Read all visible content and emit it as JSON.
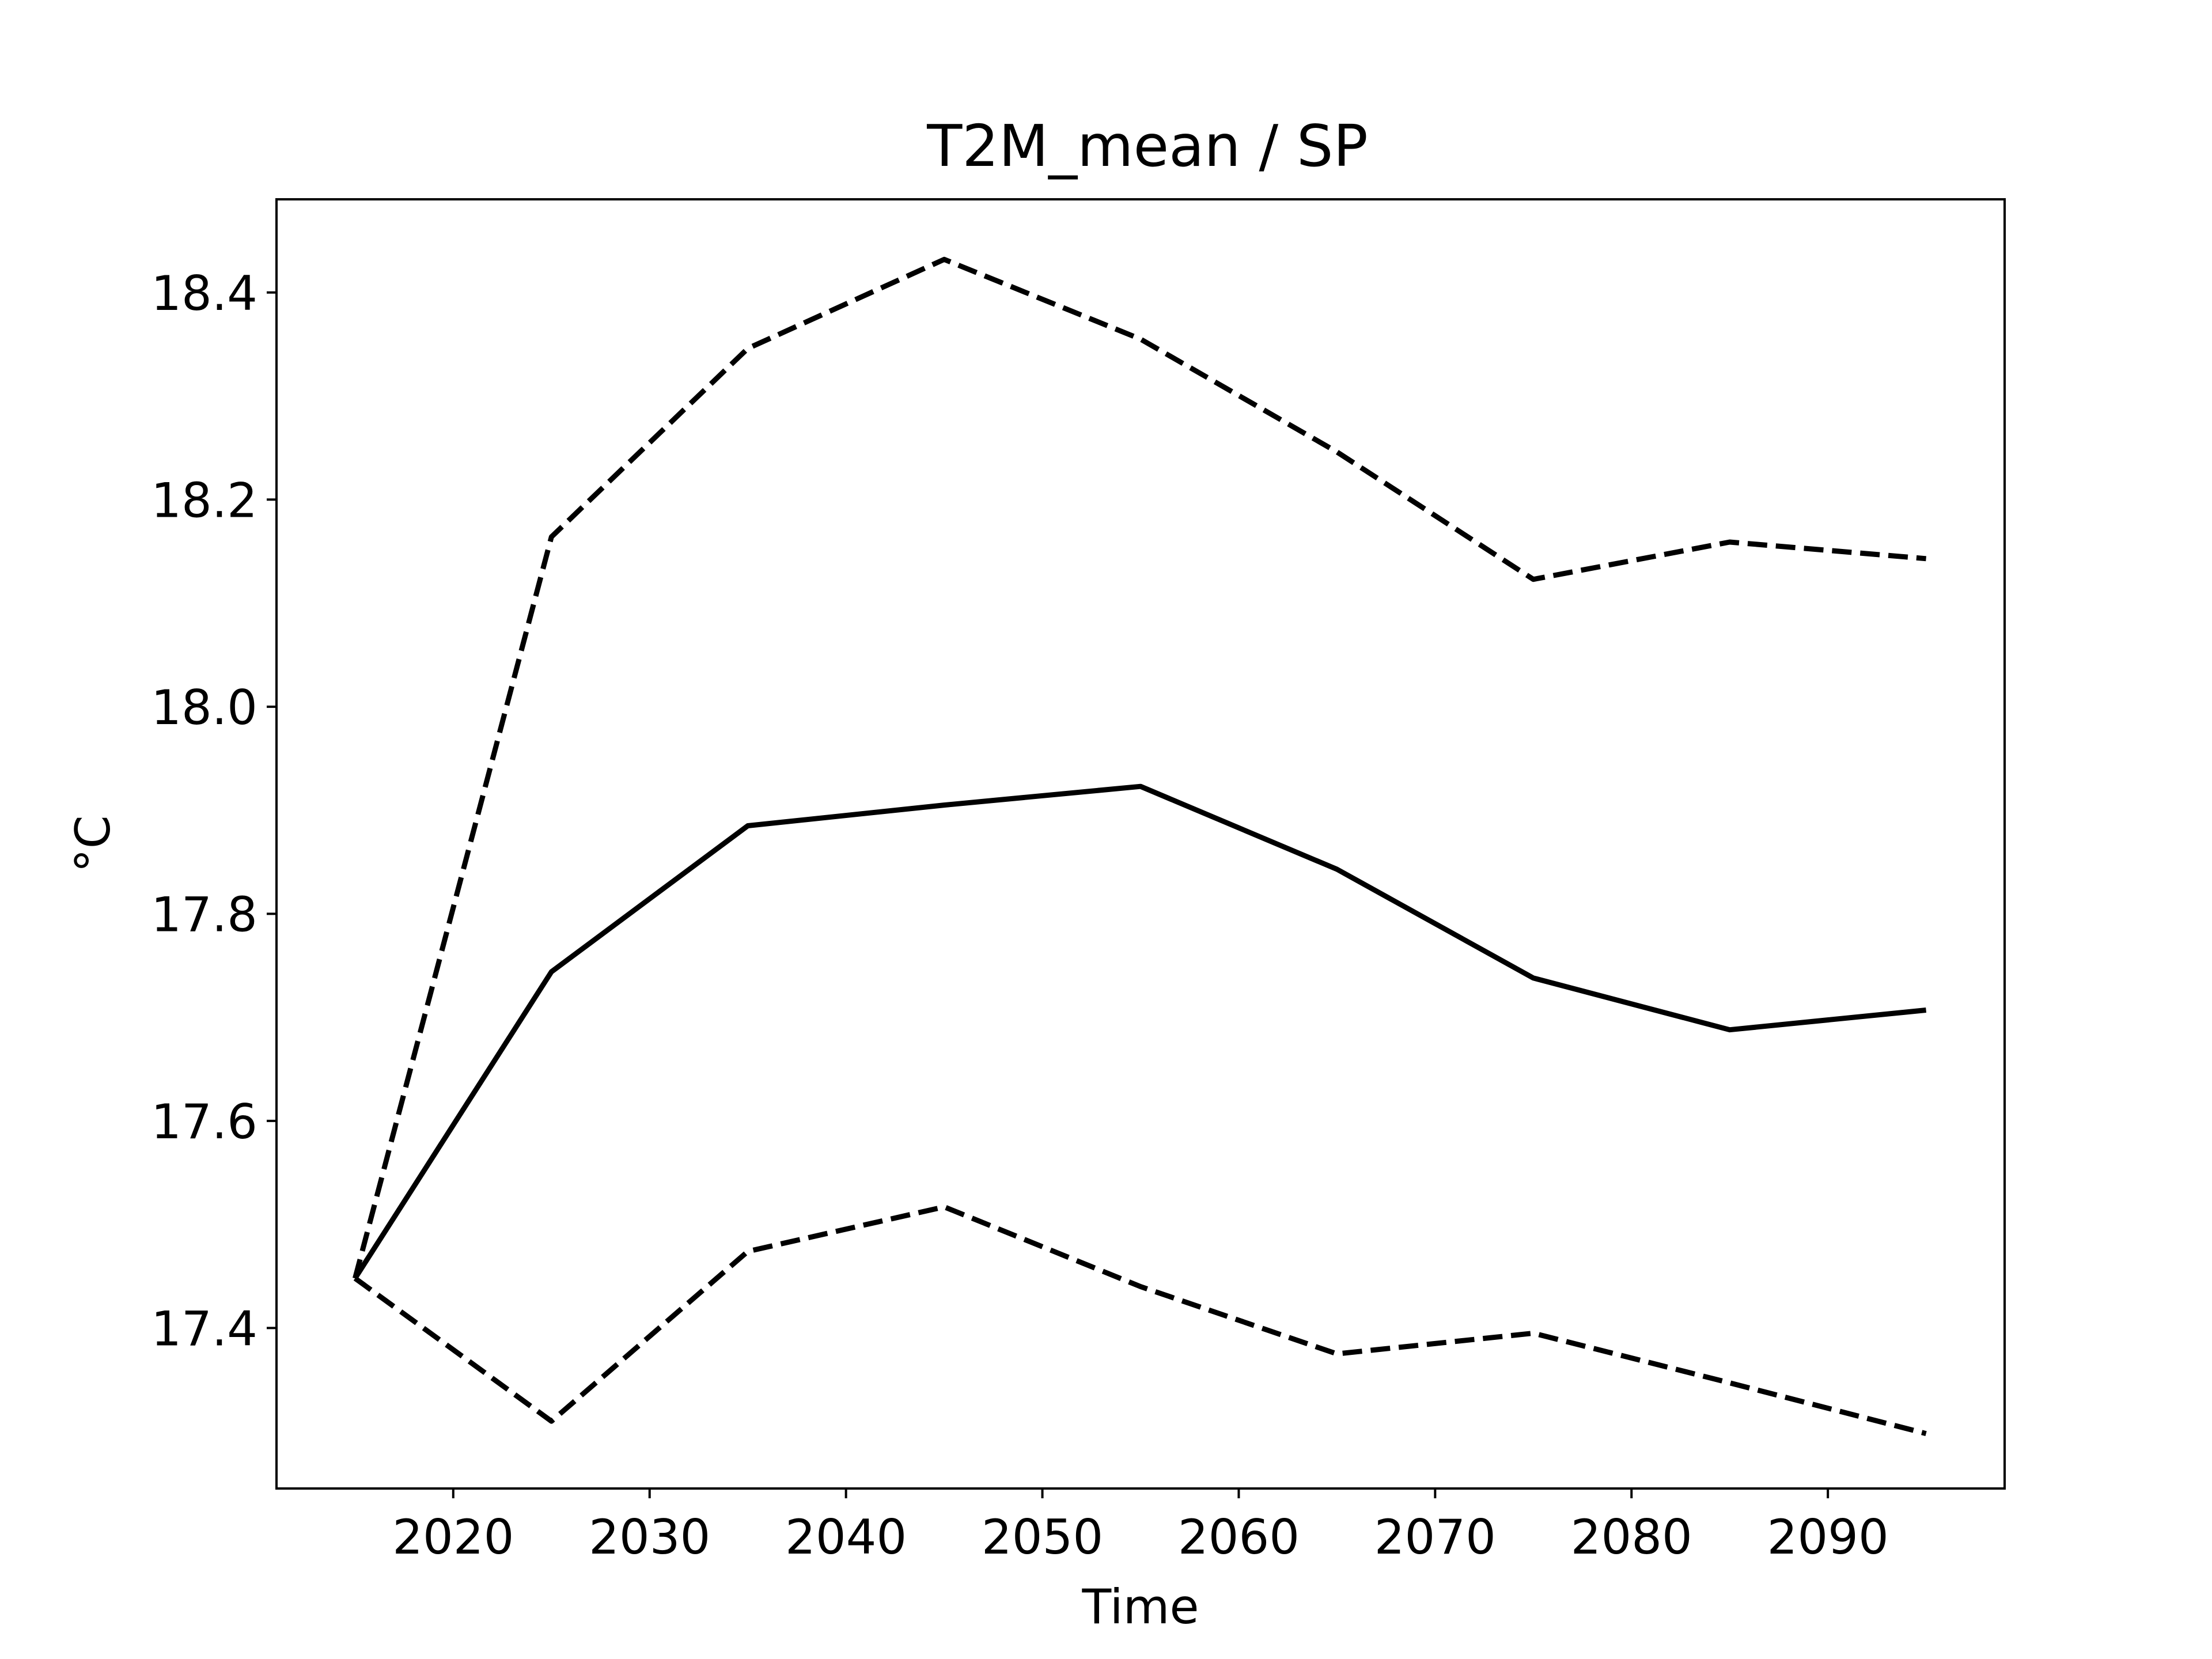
{
  "chart_data": {
    "type": "line",
    "title": "T2M_mean / SP",
    "xlabel": "Time",
    "ylabel": "°C",
    "x": [
      2015,
      2025,
      2035,
      2045,
      2055,
      2065,
      2075,
      2085,
      2095
    ],
    "xlim": [
      2011,
      2099
    ],
    "ylim": [
      17.245,
      18.49
    ],
    "xticks": [
      2020,
      2030,
      2040,
      2050,
      2060,
      2070,
      2080,
      2090
    ],
    "xtick_labels": [
      "2020",
      "2030",
      "2040",
      "2050",
      "2060",
      "2070",
      "2080",
      "2090"
    ],
    "yticks": [
      17.4,
      17.6,
      17.8,
      18.0,
      18.2,
      18.4
    ],
    "ytick_labels": [
      "17.4",
      "17.6",
      "17.8",
      "18.0",
      "18.2",
      "18.4"
    ],
    "grid": false,
    "legend": "none",
    "series": [
      {
        "style": "solid",
        "color": "#000000",
        "values": [
          17.448,
          17.744,
          17.885,
          17.905,
          17.923,
          17.843,
          17.738,
          17.688,
          17.707
        ]
      },
      {
        "style": "dashed",
        "color": "#000000",
        "values": [
          17.448,
          18.164,
          18.346,
          18.432,
          18.355,
          18.246,
          18.123,
          18.159,
          18.143
        ]
      },
      {
        "style": "dashed",
        "color": "#000000",
        "values": [
          17.448,
          17.31,
          17.474,
          17.517,
          17.44,
          17.375,
          17.395,
          17.347,
          17.298
        ]
      }
    ]
  }
}
